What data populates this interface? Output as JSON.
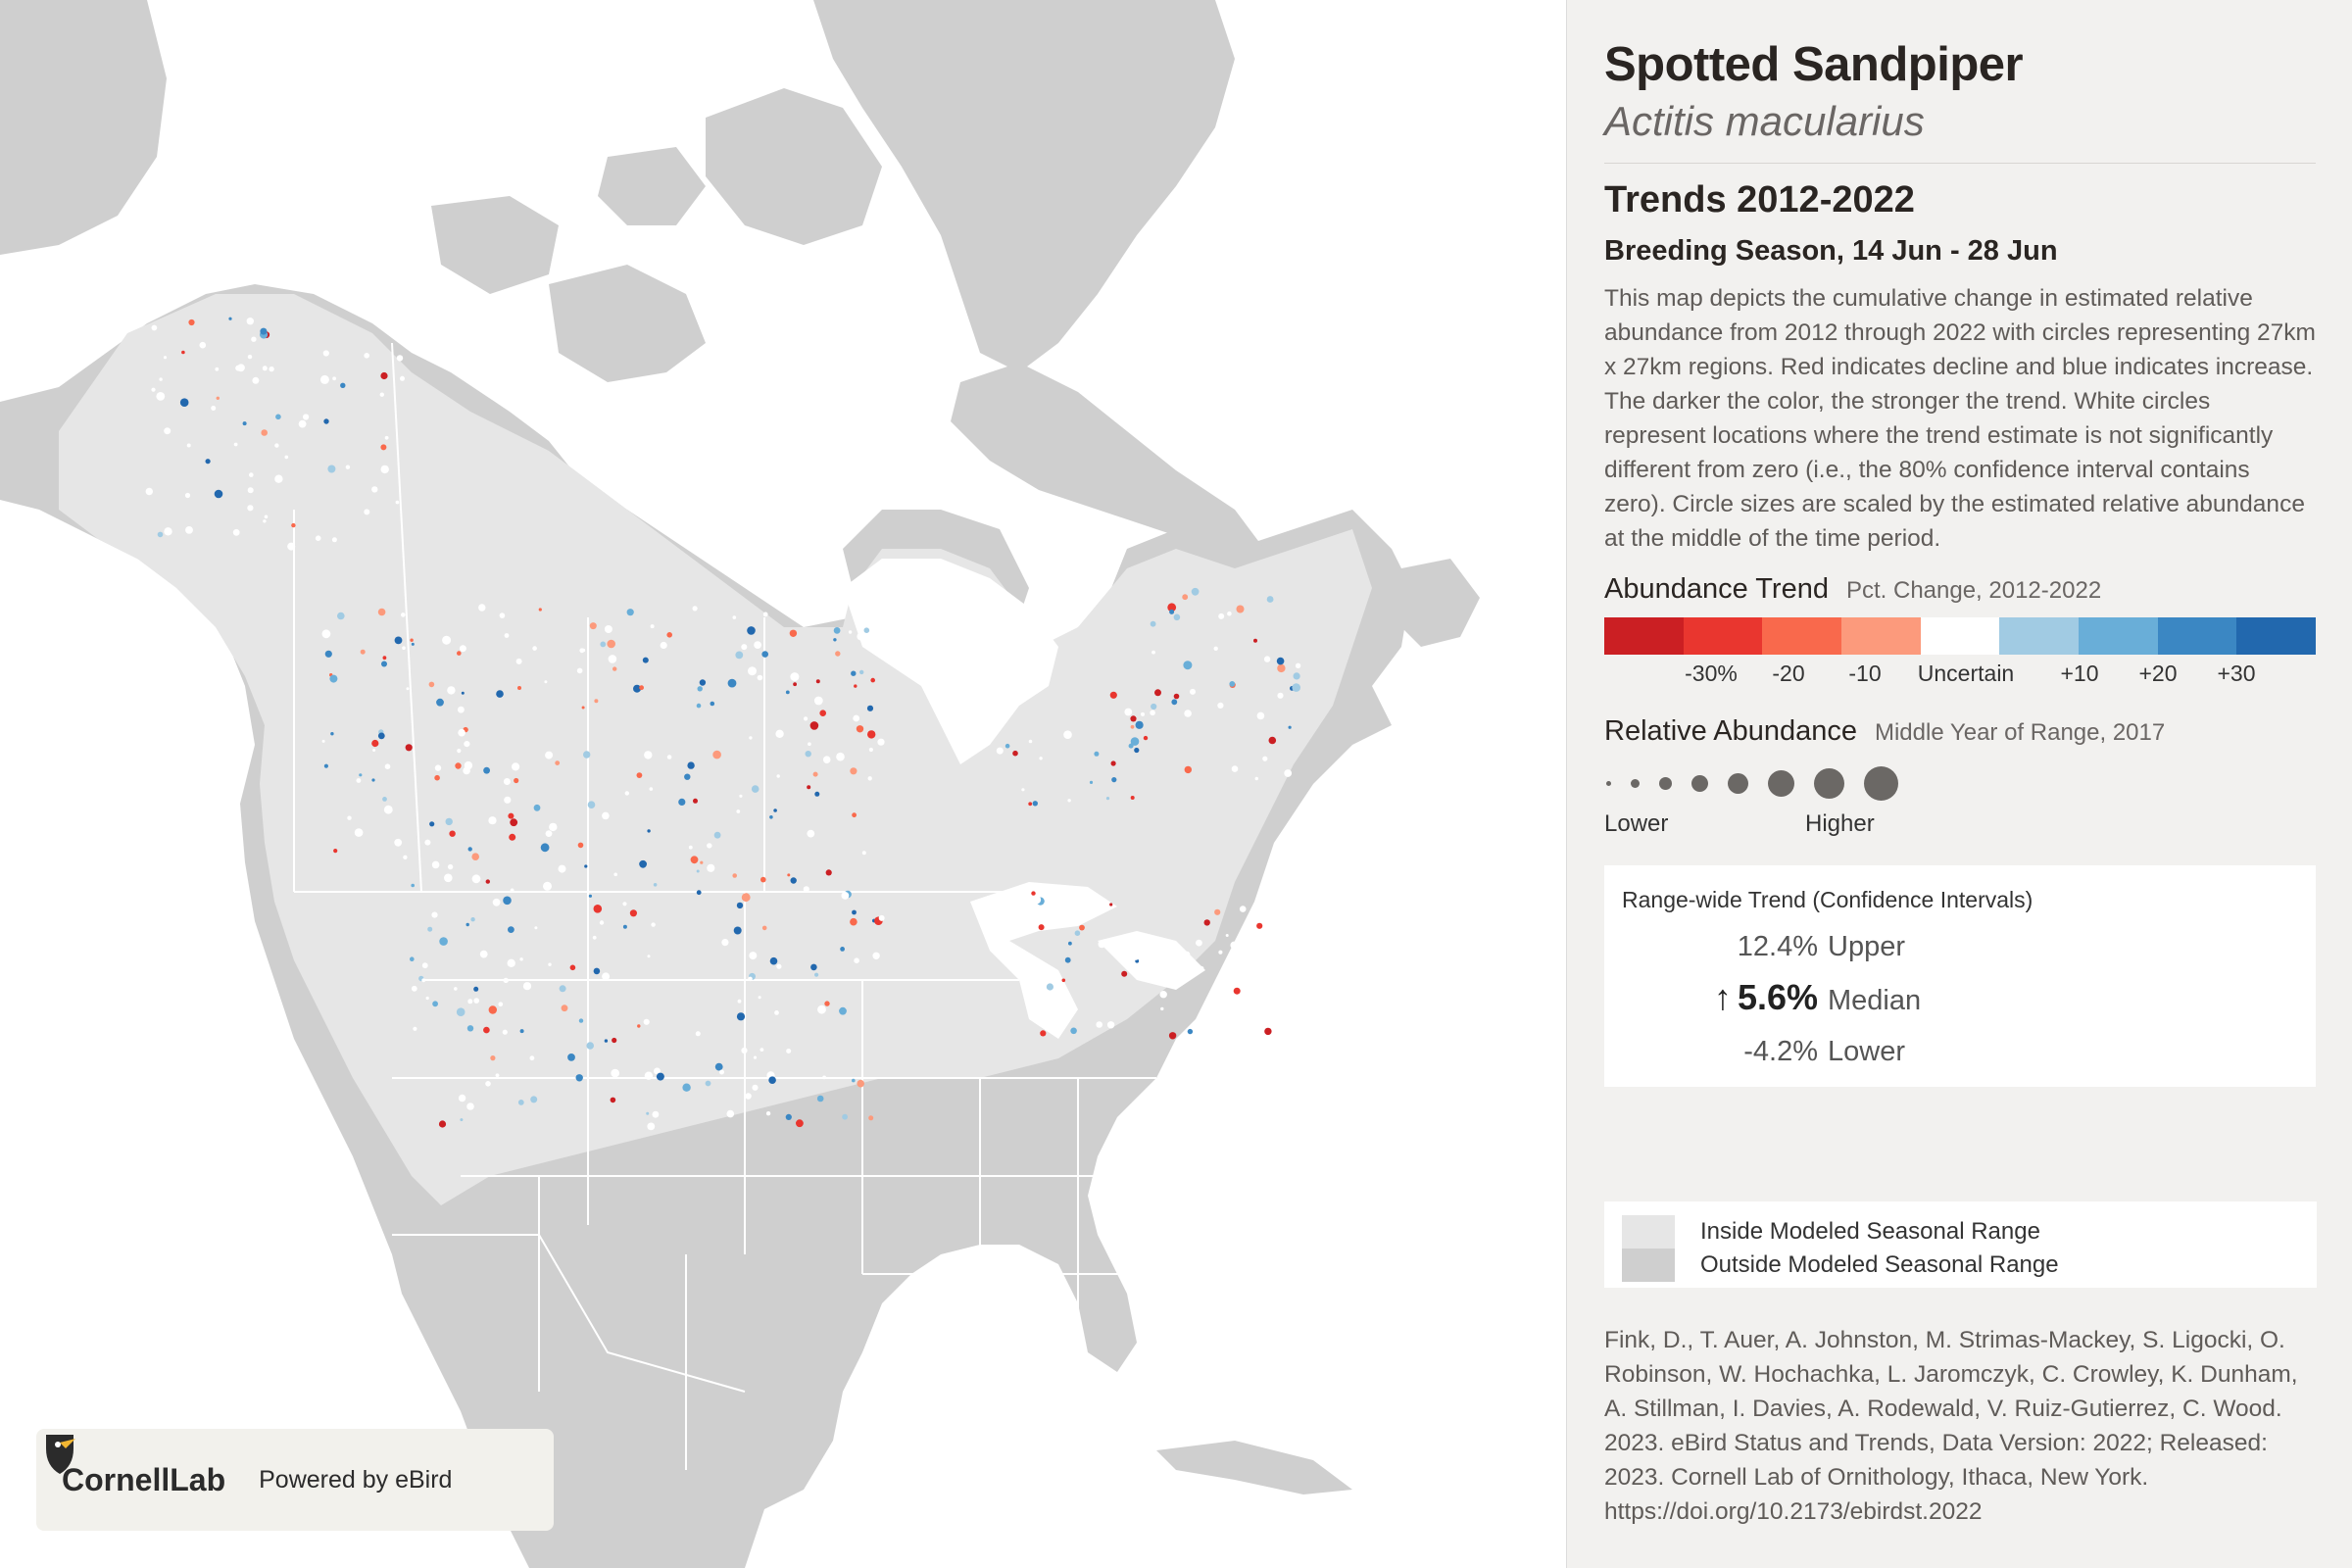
{
  "header": {
    "common_name": "Spotted Sandpiper",
    "scientific_name": "Actitis macularius",
    "trends_title": "Trends 2012-2022",
    "season": "Breeding Season, 14 Jun - 28 Jun",
    "description": "This map depicts the cumulative change in estimated relative abundance from 2012 through 2022 with circles representing 27km x 27km regions. Red indicates decline and blue indicates increase. The darker the color, the stronger the trend. White circles represent locations where the trend estimate is not significantly different from zero (i.e., the 80% confidence interval contains zero). Circle sizes are scaled by the estimated relative abundance at the middle of the time period."
  },
  "abundance_trend_legend": {
    "title": "Abundance Trend",
    "subtitle": "Pct. Change, 2012-2022",
    "colors": [
      "#cb1f23",
      "#e9362f",
      "#f9694c",
      "#fc9a7c",
      "#ffffff",
      "#a1cbe3",
      "#69aed8",
      "#3b87c3",
      "#2268ae"
    ],
    "tick_labels": [
      "-30%",
      "-20",
      "-10",
      "Uncertain",
      "+10",
      "+20",
      "+30"
    ]
  },
  "relative_abundance_legend": {
    "title": "Relative Abundance",
    "subtitle": "Middle Year of Range, 2017",
    "low_label": "Lower",
    "high_label": "Higher",
    "dot_color": "#6b6865"
  },
  "range_wide_trend": {
    "heading": "Range-wide Trend (Confidence Intervals)",
    "upper_value": "12.4%",
    "upper_label": "Upper",
    "median_arrow": "↑",
    "median_value": "5.6%",
    "median_label": "Median",
    "lower_value": "-4.2%",
    "lower_label": "Lower"
  },
  "range_legend": {
    "inside_label": "Inside Modeled Seasonal Range",
    "outside_label": "Outside Modeled Seasonal Range",
    "inside_color": "#e6e6e6",
    "outside_color": "#cfcfcf"
  },
  "citation": "Fink, D., T. Auer, A. Johnston, M. Strimas-Mackey, S. Ligocki, O. Robinson, W. Hochachka, L. Jaromczyk, C. Crowley, K. Dunham, A. Stillman, I. Davies, A. Rodewald, V. Ruiz-Gutierrez, C. Wood. 2023. eBird Status and Trends, Data Version: 2022; Released: 2023. Cornell Lab of Ornithology, Ithaca, New York. https://doi.org/10.2173/ebirdst.2022",
  "logo": {
    "org": "CornellLab",
    "powered_by": "Powered by eBird"
  },
  "map_colors": {
    "land": "#cfcfcf",
    "range": "#e6e6e6",
    "water": "#ffffff",
    "border": "#ffffff"
  }
}
